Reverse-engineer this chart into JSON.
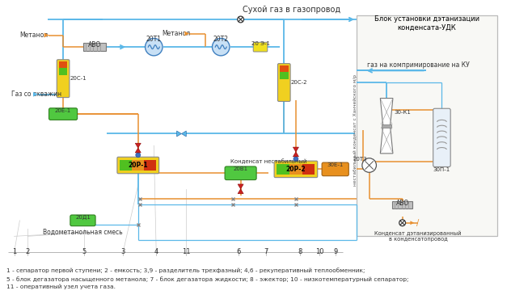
{
  "title_top": "Сухой газ в газопровод",
  "title_udk": "Блок установки дэтанизации\nконденсата-УДК",
  "legend_text": "1 - сепаратор первой ступени; 2 - емкость; 3,9 - разделитель трехфазный; 4,6 - рекуперативный теплообменник;\n5 - блок дегазатора насыщенного метанола; 7 - блок дегазатора жидкости; 8 - эжектор; 10 - низкотемпературный сепаратор;\n11 - оперативный узел учета газа.",
  "label_gas_ku": "газ на компримирование на КУ",
  "label_kondensate": "Конденсат нестабильный",
  "label_kondensate2": "Конденсат дэтанизированный\nв конденсатопровод",
  "label_gas_skvazhin": "Газ со скважин",
  "label_metanol1": "Метанол",
  "label_metanol2": "Метанол",
  "label_vodomet": "Водометанольная смесь",
  "label_nestaб": "нестабильный конденсат с Ханчейского м/р",
  "bg_color": "#ffffff",
  "pipe_blue": "#5bb8e8",
  "pipe_orange": "#e89030",
  "valve_red": "#cc2222",
  "udk_fill": "#f8f8f5"
}
